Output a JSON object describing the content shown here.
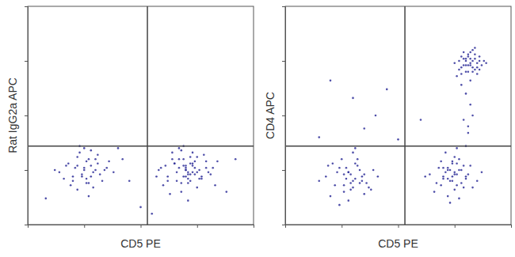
{
  "chart_data": [
    {
      "type": "scatter",
      "x_label": "CD5 PE",
      "y_label": "Rat IgG2a APC",
      "color": "#30309a",
      "marker": "dot",
      "xlim": [
        0,
        100
      ],
      "ylim": [
        0,
        100
      ],
      "xticks": [
        0,
        25,
        50,
        75,
        100
      ],
      "yticks": [
        0,
        25,
        50,
        75,
        100
      ],
      "tick_labels": false,
      "gate_x": 53,
      "gate_y": 36,
      "x": [
        14,
        18,
        20,
        22,
        24,
        25,
        27,
        28,
        30,
        32,
        34,
        36,
        19,
        23,
        26,
        29,
        31,
        21,
        25,
        28,
        33,
        17,
        22,
        27,
        30,
        24,
        26,
        20,
        35,
        29,
        12,
        38,
        23,
        27,
        25,
        31,
        16,
        28,
        22,
        26,
        58,
        62,
        65,
        67,
        68,
        70,
        71,
        72,
        73,
        75,
        77,
        79,
        82,
        60,
        64,
        66,
        69,
        70,
        72,
        74,
        76,
        78,
        81,
        63,
        67,
        69,
        71,
        73,
        75,
        68,
        70,
        72,
        74,
        66,
        61,
        80,
        84,
        57,
        71,
        69,
        73,
        65,
        77,
        70,
        68,
        75,
        62,
        79,
        71,
        74,
        67,
        72,
        76,
        70,
        64,
        83,
        59,
        73,
        69,
        71,
        8,
        45,
        50,
        42,
        88,
        92,
        55,
        40
      ],
      "values": [
        24,
        28,
        20,
        31,
        22,
        26,
        19,
        27,
        30,
        23,
        25,
        29,
        18,
        33,
        21,
        24,
        28,
        26,
        35,
        22,
        20,
        27,
        16,
        30,
        25,
        23,
        29,
        22,
        26,
        17,
        25,
        24,
        36,
        13,
        25,
        32,
        21,
        34,
        27,
        19,
        25,
        22,
        28,
        30,
        19,
        26,
        23,
        31,
        27,
        24,
        21,
        29,
        26,
        18,
        33,
        24,
        27,
        22,
        20,
        29,
        25,
        32,
        23,
        14,
        26,
        30,
        21,
        28,
        17,
        34,
        25,
        23,
        26,
        20,
        27,
        24,
        29,
        22,
        11,
        36,
        24,
        28,
        22,
        27,
        15,
        31,
        20,
        26,
        19,
        23,
        35,
        28,
        21,
        25,
        30,
        18,
        26,
        33,
        22,
        24,
        12,
        20,
        8,
        30,
        15,
        30,
        5,
        35
      ]
    },
    {
      "type": "scatter",
      "x_label": "CD5 PE",
      "y_label": "CD4 APC",
      "color": "#30309a",
      "marker": "dot",
      "xlim": [
        0,
        100
      ],
      "ylim": [
        0,
        100
      ],
      "xticks": [
        0,
        25,
        50,
        75,
        100
      ],
      "yticks": [
        0,
        25,
        50,
        75,
        100
      ],
      "tick_labels": false,
      "gate_x": 53,
      "gate_y": 36,
      "x": [
        18,
        22,
        24,
        26,
        28,
        30,
        31,
        33,
        35,
        37,
        39,
        20,
        25,
        27,
        29,
        32,
        34,
        36,
        23,
        28,
        30,
        33,
        26,
        31,
        21,
        35,
        29,
        27,
        15,
        41,
        24,
        32,
        30,
        28,
        34,
        19,
        26,
        38,
        31,
        29,
        64,
        67,
        70,
        72,
        74,
        75,
        76,
        78,
        80,
        82,
        85,
        66,
        69,
        71,
        73,
        75,
        77,
        79,
        81,
        68,
        72,
        74,
        76,
        78,
        70,
        73,
        75,
        77,
        62,
        87,
        71,
        74,
        79,
        73,
        76,
        69,
        72,
        80,
        75,
        77,
        74,
        70,
        83,
        76,
        72,
        75,
        77,
        78,
        79,
        80,
        81,
        82,
        83,
        84,
        85,
        86,
        88,
        76,
        79,
        81,
        83,
        85,
        87,
        80,
        82,
        84,
        78,
        81,
        83,
        86,
        82,
        80,
        84,
        79,
        85,
        82,
        77,
        89,
        81,
        83,
        80,
        84,
        82,
        78,
        86,
        80,
        81,
        79,
        82,
        80,
        78,
        83,
        81,
        20,
        30,
        40,
        35,
        45,
        60,
        15,
        50
      ],
      "values": [
        22,
        18,
        26,
        15,
        24,
        20,
        28,
        19,
        23,
        17,
        25,
        13,
        30,
        21,
        16,
        27,
        22,
        19,
        24,
        11,
        33,
        25,
        18,
        21,
        28,
        14,
        23,
        26,
        20,
        22,
        9,
        30,
        17,
        24,
        20,
        27,
        23,
        16,
        35,
        19,
        23,
        19,
        26,
        21,
        28,
        23,
        18,
        25,
        22,
        27,
        20,
        15,
        29,
        24,
        20,
        31,
        25,
        17,
        23,
        26,
        13,
        22,
        28,
        19,
        21,
        25,
        16,
        30,
        22,
        24,
        33,
        20,
        27,
        10,
        23,
        18,
        25,
        21,
        24,
        12,
        29,
        22,
        17,
        35,
        26,
        74,
        71,
        77,
        73,
        75,
        70,
        76,
        72,
        78,
        74,
        71,
        75,
        68,
        79,
        73,
        80,
        69,
        73,
        76,
        74,
        71,
        72,
        78,
        75,
        77,
        73,
        70,
        81,
        76,
        72,
        66,
        75,
        74,
        77,
        70,
        73,
        76,
        79,
        69,
        75,
        36,
        42,
        48,
        55,
        60,
        64,
        50,
        45,
        66,
        58,
        50,
        44,
        62,
        48,
        40,
        39
      ]
    }
  ]
}
